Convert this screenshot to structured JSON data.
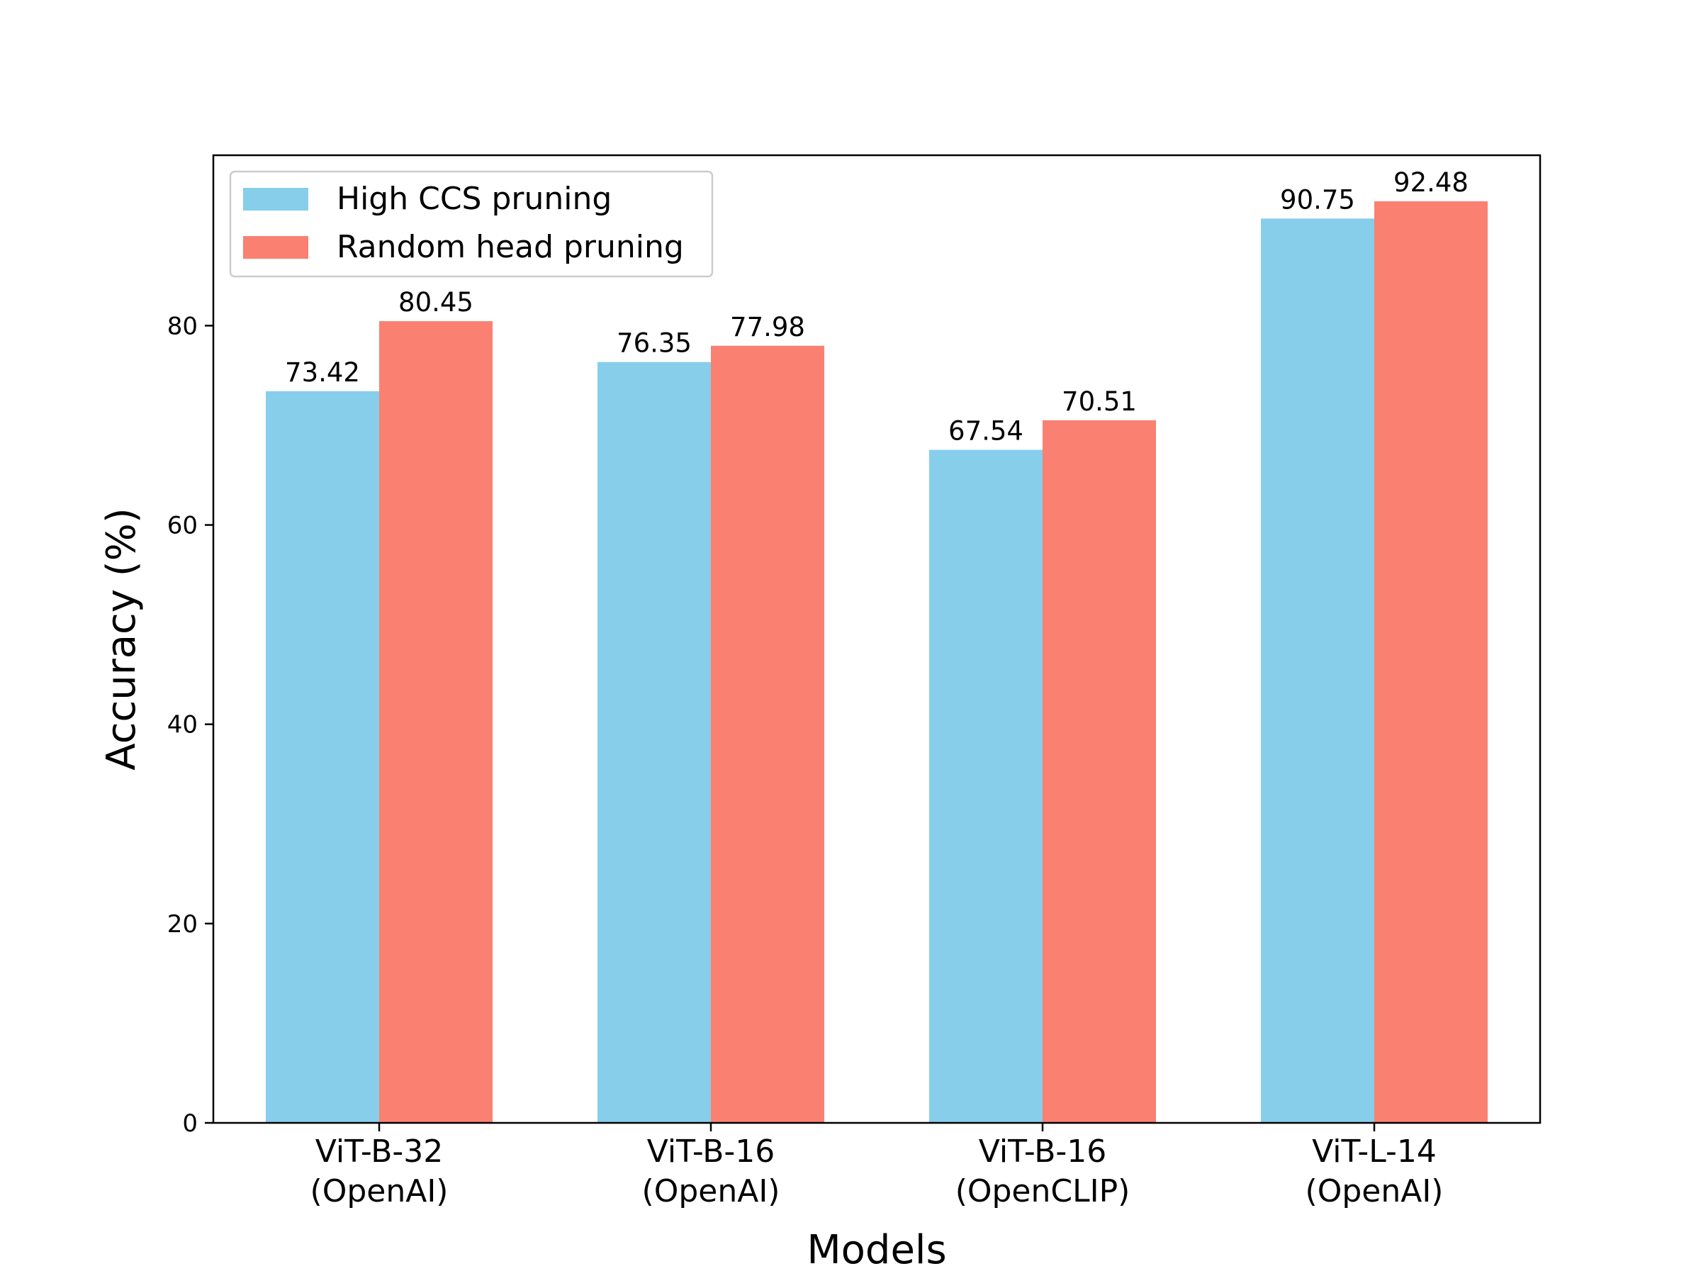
{
  "chart_data": {
    "type": "bar",
    "title": "",
    "xlabel": "Models",
    "ylabel": "Accuracy (%)",
    "ylim": [
      0,
      97.1
    ],
    "yticks": [
      0,
      20,
      40,
      60,
      80
    ],
    "categories": [
      [
        "ViT-B-32",
        "(OpenAI)"
      ],
      [
        "ViT-B-16",
        "(OpenAI)"
      ],
      [
        "ViT-B-16",
        "(OpenCLIP)"
      ],
      [
        "ViT-L-14",
        "(OpenAI)"
      ]
    ],
    "series": [
      {
        "name": "High CCS pruning",
        "color": "#87ceeb",
        "values": [
          73.42,
          76.35,
          67.54,
          90.75
        ]
      },
      {
        "name": "Random head pruning",
        "color": "#fa8072",
        "values": [
          80.45,
          77.98,
          70.51,
          92.48
        ]
      }
    ],
    "legend_position": "upper-left",
    "grid": false
  }
}
